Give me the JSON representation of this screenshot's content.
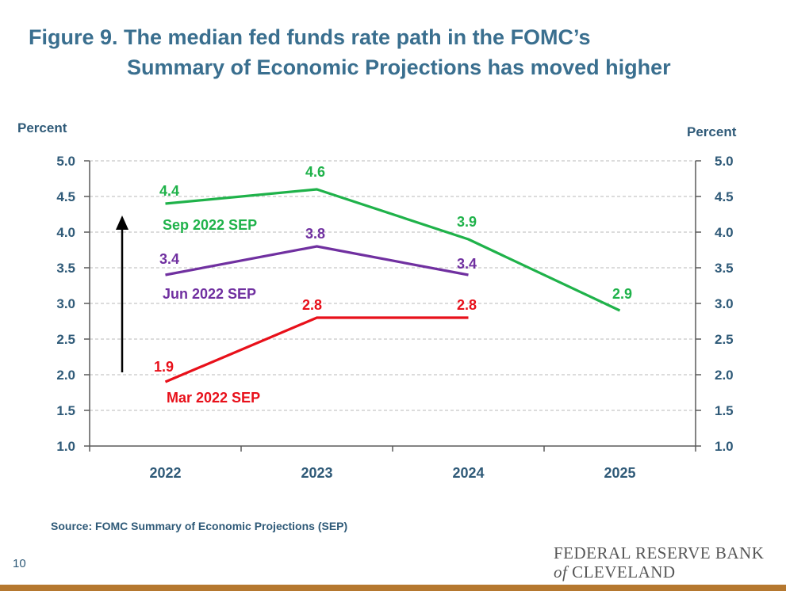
{
  "title": {
    "line1": "Figure 9. The median fed funds rate path in the FOMC’s",
    "line2": "Summary of Economic Projections has moved higher"
  },
  "left_axis_title": "Percent",
  "right_axis_title": "Percent",
  "source": "Source: FOMC Summary of Economic Projections (SEP)",
  "page_number": "10",
  "logo": {
    "line1": "FEDERAL RESERVE BANK",
    "of": "of",
    "line2": "CLEVELAND"
  },
  "colors": {
    "title": "#3a6f8f",
    "sep_sep": "#1fb24a",
    "jun_sep": "#7030a0",
    "mar_sep": "#e8101a",
    "axis_text": "#2f5a78",
    "bottom_bar": "#b5782f"
  },
  "chart_data": {
    "type": "line",
    "categories": [
      "2022",
      "2023",
      "2024",
      "2025"
    ],
    "ylim": [
      1.0,
      5.0
    ],
    "yticks": [
      "1.0",
      "1.5",
      "2.0",
      "2.5",
      "3.0",
      "3.5",
      "4.0",
      "4.5",
      "5.0"
    ],
    "ylabel": "Percent",
    "y2label": "Percent",
    "grid": "horizontal dashed",
    "series": [
      {
        "name": "Sep 2022 SEP",
        "color": "#1fb24a",
        "values": [
          4.4,
          4.6,
          3.9,
          2.9
        ],
        "labels": [
          "4.4",
          "4.6",
          "3.9",
          "2.9"
        ]
      },
      {
        "name": "Jun 2022 SEP",
        "color": "#7030a0",
        "values": [
          3.4,
          3.8,
          3.4,
          null
        ],
        "labels": [
          "3.4",
          "3.8",
          "3.4",
          ""
        ]
      },
      {
        "name": "Mar 2022 SEP",
        "color": "#e8101a",
        "values": [
          1.9,
          2.8,
          2.8,
          null
        ],
        "labels": [
          "1.9",
          "2.8",
          "2.8",
          ""
        ]
      }
    ],
    "annotation": "upward arrow"
  }
}
